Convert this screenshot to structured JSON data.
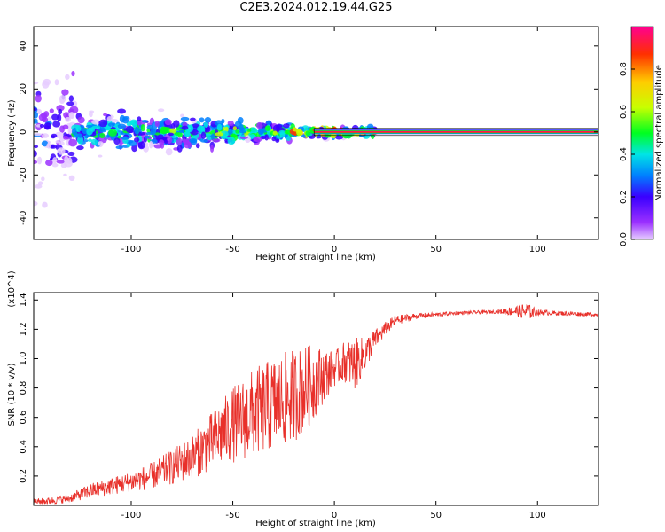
{
  "figure_title": "C2E3.2024.012.19.44.G25",
  "chart_data": [
    {
      "type": "heatmap",
      "xlabel": "Height of straight line (km)",
      "ylabel": "Frequency (Hz)",
      "xlim": [
        -148,
        130
      ],
      "ylim": [
        -50,
        49
      ],
      "xticks": [
        -100,
        -50,
        0,
        50,
        100
      ],
      "yticks": [
        -40,
        -20,
        0,
        20,
        40
      ],
      "colorbar": {
        "label": "Normalized spectral amplitude",
        "range": [
          0,
          1
        ],
        "ticks": [
          0.0,
          0.2,
          0.4,
          0.6,
          0.8
        ],
        "colors": [
          "#e6ccff",
          "#9b30ff",
          "#3a00ff",
          "#0080ff",
          "#00e5e5",
          "#00ff20",
          "#c8ff00",
          "#ffcc00",
          "#ff3000",
          "#ff0090"
        ]
      },
      "tone": {
        "frequency": 0,
        "x_start": -10,
        "x_end": 130
      },
      "features": [
        {
          "x0": -148,
          "x1": -128,
          "fwidth": 48,
          "amp": 0.18,
          "density": 0.9
        },
        {
          "x0": -128,
          "x1": -60,
          "fwidth": 14,
          "amp": 0.45,
          "density": 0.8
        },
        {
          "x0": -60,
          "x1": -20,
          "fwidth": 9,
          "amp": 0.55,
          "density": 0.8
        },
        {
          "x0": -20,
          "x1": 20,
          "fwidth": 4,
          "amp": 0.75,
          "density": 0.7
        }
      ],
      "grid": false
    },
    {
      "type": "line",
      "xlabel": "Height of straight line (km)",
      "ylabel": "SNR (10 * v/v)",
      "y_multiplier": "(x10^4)",
      "xlim": [
        -148,
        130
      ],
      "ylim": [
        0,
        14500
      ],
      "xticks": [
        -100,
        -50,
        0,
        50,
        100
      ],
      "yticks": [
        2000,
        4000,
        6000,
        8000,
        10000,
        12000,
        14000
      ],
      "ytick_labels": [
        "0.2",
        "0.4",
        "0.6",
        "0.8",
        "1.0",
        "1.2",
        "1.4"
      ],
      "color": "#e8302a",
      "x": [
        -148,
        -140,
        -130,
        -120,
        -110,
        -100,
        -90,
        -80,
        -70,
        -60,
        -50,
        -40,
        -30,
        -20,
        -15,
        -10,
        -5,
        0,
        5,
        10,
        15,
        20,
        25,
        30,
        40,
        50,
        60,
        70,
        80,
        90,
        95,
        100,
        110,
        120,
        130
      ],
      "y": [
        250,
        300,
        500,
        1000,
        1300,
        1600,
        2000,
        2600,
        3300,
        4400,
        5500,
        6300,
        6900,
        7500,
        7900,
        8400,
        8900,
        9300,
        9800,
        9600,
        10300,
        11300,
        12000,
        12600,
        12900,
        13000,
        13100,
        13150,
        13200,
        13250,
        13200,
        13150,
        13100,
        13050,
        13000
      ],
      "noise": [
        200,
        250,
        300,
        500,
        600,
        700,
        900,
        1200,
        1500,
        2000,
        2600,
        3000,
        3200,
        3200,
        3000,
        2600,
        1800,
        1200,
        1400,
        1800,
        1200,
        700,
        500,
        350,
        200,
        150,
        120,
        120,
        120,
        400,
        600,
        200,
        150,
        150,
        120
      ],
      "grid": false
    }
  ]
}
